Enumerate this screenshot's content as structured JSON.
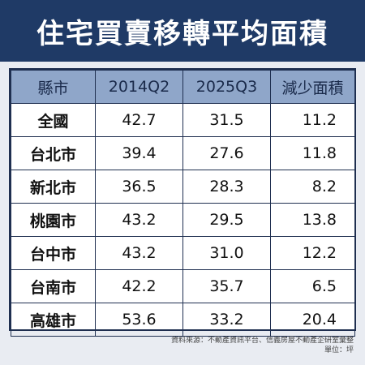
{
  "title": "住宅買賣移轉平均面積",
  "table": {
    "headers": [
      "縣市",
      "2014Q2",
      "2025Q3",
      "減少面積"
    ],
    "rows": [
      {
        "region": "全國",
        "v2014": "42.7",
        "v2025": "31.5",
        "reduced": "11.2"
      },
      {
        "region": "台北市",
        "v2014": "39.4",
        "v2025": "27.6",
        "reduced": "11.8"
      },
      {
        "region": "新北市",
        "v2014": "36.5",
        "v2025": "28.3",
        "reduced": "8.2"
      },
      {
        "region": "桃園市",
        "v2014": "43.2",
        "v2025": "29.5",
        "reduced": "13.8"
      },
      {
        "region": "台中市",
        "v2014": "43.2",
        "v2025": "31.0",
        "reduced": "12.2"
      },
      {
        "region": "台南市",
        "v2014": "42.2",
        "v2025": "35.7",
        "reduced": "6.5"
      },
      {
        "region": "高雄市",
        "v2014": "53.6",
        "v2025": "33.2",
        "reduced": "20.4"
      }
    ]
  },
  "source": "資料來源：不動產資訊平台、信義房屋不動產企研室彙整",
  "unit": "單位：坪",
  "colors": {
    "title_bg": "#1f3a66",
    "header_bg": "#8fa6c9",
    "border": "#1f2f50",
    "page_bg": "#e9ecf2"
  },
  "chart_data": {
    "type": "table",
    "title": "住宅買賣移轉平均面積",
    "columns": [
      "縣市",
      "2014Q2",
      "2025Q3",
      "減少面積"
    ],
    "rows": [
      [
        "全國",
        42.7,
        31.5,
        11.2
      ],
      [
        "台北市",
        39.4,
        27.6,
        11.8
      ],
      [
        "新北市",
        36.5,
        28.3,
        8.2
      ],
      [
        "桃園市",
        43.2,
        29.5,
        13.8
      ],
      [
        "台中市",
        43.2,
        31.0,
        12.2
      ],
      [
        "台南市",
        42.2,
        35.7,
        6.5
      ],
      [
        "高雄市",
        53.6,
        33.2,
        20.4
      ]
    ],
    "unit": "坪"
  }
}
